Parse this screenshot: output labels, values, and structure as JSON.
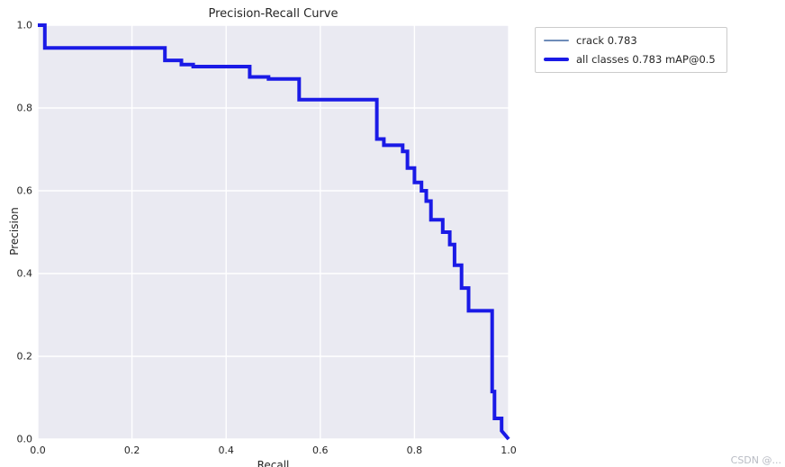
{
  "title": "Precision-Recall Curve",
  "watermark": "CSDN @...",
  "axes": {
    "xlabel": "Recall",
    "ylabel": "Precision",
    "xticks": [
      "0.0",
      "0.2",
      "0.4",
      "0.6",
      "0.8",
      "1.0"
    ],
    "yticks": [
      "0.0",
      "0.2",
      "0.4",
      "0.6",
      "0.8",
      "1.0"
    ]
  },
  "legend": {
    "items": [
      {
        "label": "crack 0.783",
        "color": "#6e8cb8",
        "weight": "thin"
      },
      {
        "label": "all classes 0.783 mAP@0.5",
        "color": "#1a1ae6",
        "weight": "thick"
      }
    ]
  },
  "style": {
    "plot_background": "#eaeaf2",
    "grid_color": "#ffffff",
    "text_color": "#262626"
  },
  "chart_data": {
    "type": "line",
    "title": "Precision-Recall Curve",
    "xlabel": "Recall",
    "ylabel": "Precision",
    "xlim": [
      0,
      1
    ],
    "ylim": [
      0,
      1
    ],
    "grid": true,
    "legend_position": "outside upper right",
    "series": [
      {
        "name": "crack 0.783",
        "color": "#6e8cb8",
        "linewidth": 1.5,
        "points": [
          [
            0.0,
            1.0
          ],
          [
            0.015,
            1.0
          ],
          [
            0.015,
            0.945
          ],
          [
            0.27,
            0.945
          ],
          [
            0.27,
            0.915
          ],
          [
            0.305,
            0.915
          ],
          [
            0.305,
            0.905
          ],
          [
            0.33,
            0.905
          ],
          [
            0.33,
            0.9
          ],
          [
            0.45,
            0.9
          ],
          [
            0.45,
            0.875
          ],
          [
            0.49,
            0.875
          ],
          [
            0.49,
            0.87
          ],
          [
            0.555,
            0.87
          ],
          [
            0.555,
            0.82
          ],
          [
            0.72,
            0.82
          ],
          [
            0.72,
            0.725
          ],
          [
            0.735,
            0.725
          ],
          [
            0.735,
            0.71
          ],
          [
            0.775,
            0.71
          ],
          [
            0.775,
            0.695
          ],
          [
            0.785,
            0.695
          ],
          [
            0.785,
            0.655
          ],
          [
            0.8,
            0.655
          ],
          [
            0.8,
            0.62
          ],
          [
            0.815,
            0.62
          ],
          [
            0.815,
            0.6
          ],
          [
            0.825,
            0.6
          ],
          [
            0.825,
            0.575
          ],
          [
            0.835,
            0.575
          ],
          [
            0.835,
            0.53
          ],
          [
            0.86,
            0.53
          ],
          [
            0.86,
            0.5
          ],
          [
            0.875,
            0.5
          ],
          [
            0.875,
            0.47
          ],
          [
            0.885,
            0.47
          ],
          [
            0.885,
            0.42
          ],
          [
            0.9,
            0.42
          ],
          [
            0.9,
            0.365
          ],
          [
            0.915,
            0.365
          ],
          [
            0.915,
            0.31
          ],
          [
            0.965,
            0.31
          ],
          [
            0.965,
            0.115
          ],
          [
            0.97,
            0.115
          ],
          [
            0.97,
            0.05
          ],
          [
            0.985,
            0.05
          ],
          [
            0.985,
            0.02
          ],
          [
            1.0,
            0.0
          ]
        ]
      },
      {
        "name": "all classes 0.783 mAP@0.5",
        "color": "#1a1ae6",
        "linewidth": 4,
        "points": [
          [
            0.0,
            1.0
          ],
          [
            0.015,
            1.0
          ],
          [
            0.015,
            0.945
          ],
          [
            0.27,
            0.945
          ],
          [
            0.27,
            0.915
          ],
          [
            0.305,
            0.915
          ],
          [
            0.305,
            0.905
          ],
          [
            0.33,
            0.905
          ],
          [
            0.33,
            0.9
          ],
          [
            0.45,
            0.9
          ],
          [
            0.45,
            0.875
          ],
          [
            0.49,
            0.875
          ],
          [
            0.49,
            0.87
          ],
          [
            0.555,
            0.87
          ],
          [
            0.555,
            0.82
          ],
          [
            0.72,
            0.82
          ],
          [
            0.72,
            0.725
          ],
          [
            0.735,
            0.725
          ],
          [
            0.735,
            0.71
          ],
          [
            0.775,
            0.71
          ],
          [
            0.775,
            0.695
          ],
          [
            0.785,
            0.695
          ],
          [
            0.785,
            0.655
          ],
          [
            0.8,
            0.655
          ],
          [
            0.8,
            0.62
          ],
          [
            0.815,
            0.62
          ],
          [
            0.815,
            0.6
          ],
          [
            0.825,
            0.6
          ],
          [
            0.825,
            0.575
          ],
          [
            0.835,
            0.575
          ],
          [
            0.835,
            0.53
          ],
          [
            0.86,
            0.53
          ],
          [
            0.86,
            0.5
          ],
          [
            0.875,
            0.5
          ],
          [
            0.875,
            0.47
          ],
          [
            0.885,
            0.47
          ],
          [
            0.885,
            0.42
          ],
          [
            0.9,
            0.42
          ],
          [
            0.9,
            0.365
          ],
          [
            0.915,
            0.365
          ],
          [
            0.915,
            0.31
          ],
          [
            0.965,
            0.31
          ],
          [
            0.965,
            0.115
          ],
          [
            0.97,
            0.115
          ],
          [
            0.97,
            0.05
          ],
          [
            0.985,
            0.05
          ],
          [
            0.985,
            0.02
          ],
          [
            1.0,
            0.0
          ]
        ]
      }
    ]
  }
}
